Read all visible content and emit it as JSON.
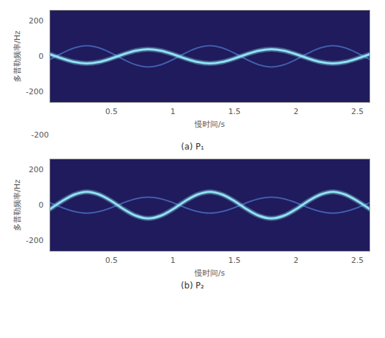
{
  "chart_data": [
    {
      "type": "line",
      "title": "(a) P₁",
      "x_label": "慢时间/s",
      "y_label": "多普勒频率/Hz",
      "x": [
        0,
        0.1,
        0.2,
        0.3,
        0.4,
        0.5,
        0.6,
        0.7,
        0.8,
        0.9,
        1.0,
        1.1,
        1.2,
        1.3,
        1.4,
        1.5,
        1.6,
        1.7,
        1.8,
        1.9,
        2.0,
        2.1,
        2.2,
        2.3,
        2.4,
        2.5,
        2.6
      ],
      "series": [
        {
          "color": "#4f74c8",
          "values": [
            -18,
            18,
            48,
            60,
            48,
            18,
            -18,
            -48,
            -60,
            -48,
            -18,
            18,
            48,
            60,
            48,
            18,
            -18,
            -48,
            -60,
            -48,
            -18,
            18,
            48,
            60,
            48,
            18,
            -18
          ]
        },
        {
          "color": "#8fe3f2",
          "values": [
            12,
            -12,
            -32,
            -40,
            -32,
            -12,
            12,
            32,
            40,
            32,
            12,
            -12,
            -32,
            -40,
            -32,
            -12,
            12,
            32,
            40,
            32,
            12,
            -12,
            -32,
            -40,
            -32,
            -12,
            12
          ]
        }
      ],
      "xlim": [
        0,
        2.6
      ],
      "ylim": [
        -260,
        260
      ],
      "xticks": [
        0.5,
        1,
        1.5,
        2,
        2.5
      ],
      "yticks": [
        -200,
        0,
        200
      ],
      "annotations": [
        "-200"
      ]
    },
    {
      "type": "line",
      "title": "(b) P₂",
      "x_label": "慢时间/s",
      "y_label": "多普勒频率/Hz",
      "x": [
        0,
        0.1,
        0.2,
        0.3,
        0.4,
        0.5,
        0.6,
        0.7,
        0.8,
        0.9,
        1.0,
        1.1,
        1.2,
        1.3,
        1.4,
        1.5,
        1.6,
        1.7,
        1.8,
        1.9,
        2.0,
        2.1,
        2.2,
        2.3,
        2.4,
        2.5,
        2.6
      ],
      "series": [
        {
          "color": "#4f74c8",
          "values": [
            14,
            -14,
            -36,
            -45,
            -36,
            -14,
            14,
            36,
            45,
            36,
            14,
            -14,
            -36,
            -45,
            -36,
            -14,
            14,
            36,
            45,
            36,
            14,
            -14,
            -36,
            -45,
            -36,
            -14,
            14
          ]
        },
        {
          "color": "#8fe3f2",
          "values": [
            -23,
            23,
            60,
            75,
            60,
            23,
            -23,
            -60,
            -75,
            -60,
            -23,
            23,
            60,
            75,
            60,
            23,
            -23,
            -60,
            -75,
            -60,
            -23,
            23,
            60,
            75,
            60,
            23,
            -23
          ]
        }
      ],
      "xlim": [
        0,
        2.6
      ],
      "ylim": [
        -260,
        260
      ],
      "xticks": [
        0.5,
        1,
        1.5,
        2,
        2.5
      ],
      "yticks": [
        -200,
        0,
        200
      ]
    }
  ]
}
